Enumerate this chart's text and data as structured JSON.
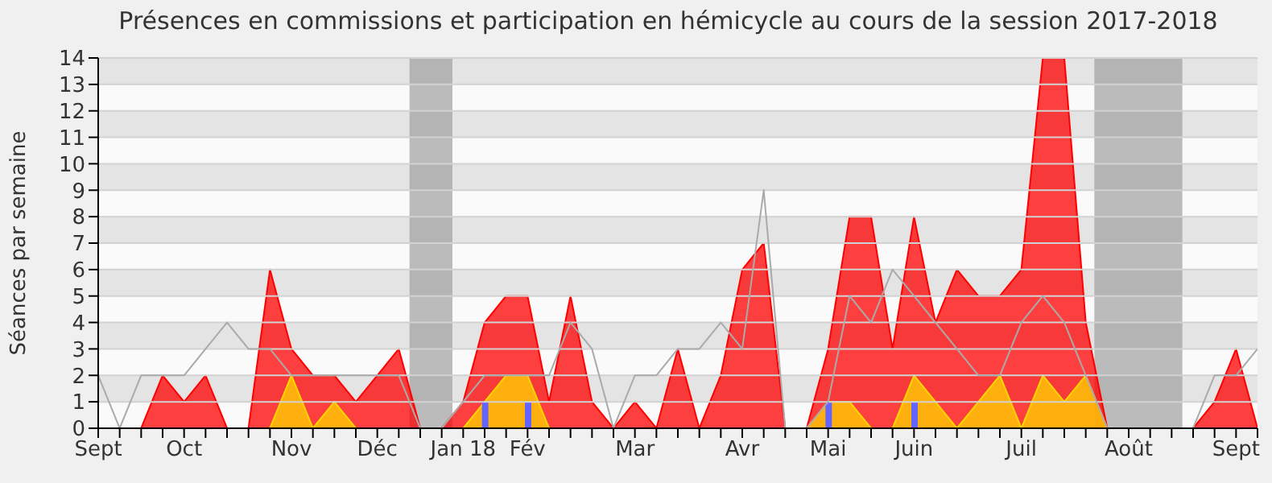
{
  "chart_data": {
    "type": "area",
    "title": "Présences en commissions et participation en hémicycle au cours de la session 2017-2018",
    "ylabel": "Séances par semaine",
    "categories": [
      "Sept",
      null,
      null,
      null,
      "Oct",
      null,
      null,
      null,
      null,
      "Nov",
      null,
      null,
      null,
      "Déc",
      null,
      null,
      null,
      "Jan 18",
      null,
      null,
      "Fév",
      null,
      null,
      null,
      null,
      "Mar",
      null,
      null,
      null,
      null,
      "Avr",
      null,
      null,
      null,
      "Mai",
      null,
      null,
      null,
      "Juin",
      null,
      null,
      null,
      null,
      "Juil",
      null,
      null,
      null,
      null,
      "Août",
      null,
      null,
      null,
      null,
      "Sept",
      null
    ],
    "ylim": [
      0,
      14
    ],
    "yticks": [
      0,
      1,
      2,
      3,
      4,
      5,
      6,
      7,
      8,
      9,
      10,
      11,
      12,
      13,
      14
    ],
    "grid": "y",
    "series": [
      {
        "color": "#ff0000",
        "values": [
          0,
          0,
          0,
          2,
          1,
          2,
          0,
          0,
          6,
          3,
          2,
          2,
          1,
          2,
          3,
          0,
          0,
          1,
          4,
          5,
          5,
          1,
          5,
          1,
          0,
          1,
          0,
          3,
          0,
          2,
          6,
          7,
          0,
          0,
          3,
          8,
          8,
          3,
          8,
          4,
          6,
          5,
          5,
          6,
          14,
          14,
          4,
          0,
          0,
          0,
          0,
          0,
          1,
          3,
          0
        ]
      },
      {
        "color": "#ffd700",
        "values": [
          0,
          0,
          0,
          0,
          0,
          0,
          0,
          0,
          0,
          2,
          0,
          1,
          0,
          0,
          0,
          0,
          0,
          0,
          1,
          2,
          2,
          0,
          0,
          0,
          0,
          0,
          0,
          0,
          0,
          0,
          0,
          0,
          0,
          0,
          1,
          1,
          0,
          0,
          2,
          1,
          0,
          1,
          2,
          0,
          2,
          1,
          2,
          0,
          0,
          0,
          0,
          0,
          0,
          0,
          0
        ]
      },
      {
        "type": "line",
        "color": "#aaaaaa",
        "values": [
          2,
          0,
          2,
          2,
          2,
          3,
          4,
          3,
          3,
          2,
          2,
          2,
          2,
          2,
          2,
          0,
          0,
          1,
          2,
          2,
          2,
          2,
          4,
          3,
          0,
          2,
          2,
          3,
          3,
          4,
          3,
          9,
          0,
          0,
          1,
          5,
          4,
          6,
          5,
          4,
          3,
          2,
          2,
          4,
          5,
          4,
          2,
          0,
          0,
          0,
          0,
          0,
          2,
          2,
          3
        ]
      },
      {
        "type": "bar",
        "color": "#6464ff",
        "values": [
          null,
          null,
          null,
          null,
          null,
          null,
          null,
          null,
          null,
          null,
          null,
          null,
          null,
          null,
          null,
          null,
          null,
          null,
          1,
          null,
          1,
          null,
          null,
          null,
          null,
          null,
          null,
          null,
          null,
          null,
          null,
          null,
          null,
          null,
          1,
          null,
          null,
          null,
          1,
          null,
          null,
          null,
          null,
          null,
          null,
          null,
          null,
          null,
          null,
          null,
          null,
          null,
          null,
          null,
          null
        ]
      }
    ]
  }
}
